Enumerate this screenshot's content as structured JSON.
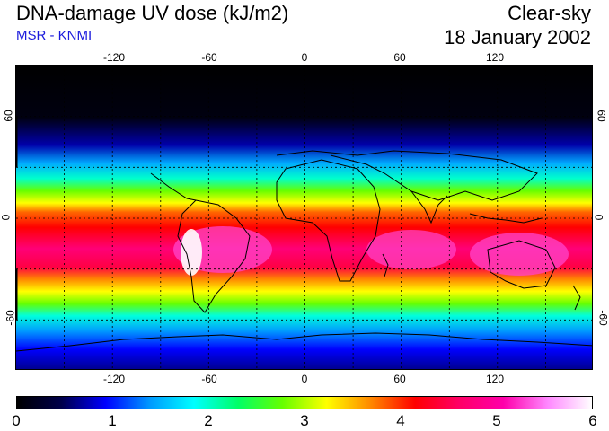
{
  "header": {
    "title": "DNA-damage UV dose (kJ/m2)",
    "subtitle": "MSR - KNMI",
    "mode": "Clear-sky",
    "date": "18 January 2002"
  },
  "map": {
    "lon_ticks": [
      "-120",
      "-60",
      "0",
      "60",
      "120"
    ],
    "lat_ticks_left": [
      "60",
      "0",
      "-60"
    ],
    "lat_ticks_right": [
      "60",
      "0",
      "-60"
    ],
    "lon_range": [
      -180,
      180
    ],
    "lat_range": [
      -90,
      90
    ]
  },
  "colorbar": {
    "ticks": [
      "0",
      "1",
      "2",
      "3",
      "4",
      "5",
      "6"
    ],
    "min": 0,
    "max": 6,
    "colors": [
      "#000000",
      "#00004a",
      "#0000ff",
      "#0099ff",
      "#00ffff",
      "#00ff66",
      "#66ff00",
      "#ffff00",
      "#ff8800",
      "#ff0000",
      "#ff0066",
      "#ff00aa",
      "#ff88ff",
      "#ffffff"
    ]
  }
}
